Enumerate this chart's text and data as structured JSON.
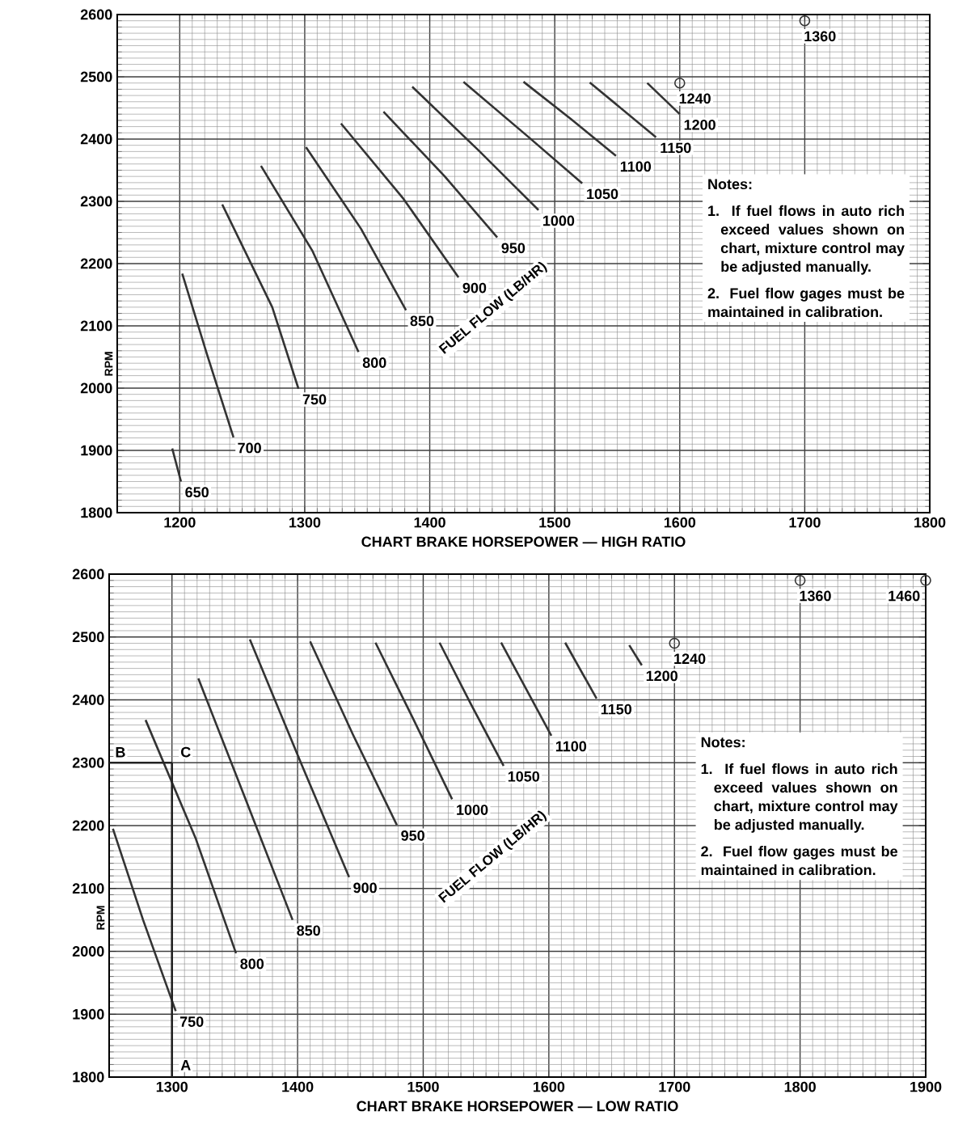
{
  "chart_data": [
    {
      "type": "line",
      "xlabel": "CHART BRAKE HORSEPOWER — HIGH RATIO",
      "ylabel": "RPM",
      "xlim": [
        1150,
        1800
      ],
      "ylim": [
        1800,
        2600
      ],
      "xticks": [
        1200,
        1300,
        1400,
        1500,
        1600,
        1700,
        1800
      ],
      "yticks": [
        1800,
        1900,
        2000,
        2100,
        2200,
        2300,
        2400,
        2500,
        2600
      ],
      "grid": true,
      "series": [
        {
          "name": "650",
          "color": "#333333",
          "x": [
            1194,
            1201
          ],
          "values": [
            1903,
            1850
          ]
        },
        {
          "name": "700",
          "color": "#333333",
          "x": [
            1202,
            1222,
            1243
          ],
          "values": [
            2184,
            2053,
            1921
          ]
        },
        {
          "name": "750",
          "color": "#333333",
          "x": [
            1234,
            1274,
            1295
          ],
          "values": [
            2295,
            2130,
            1999
          ]
        },
        {
          "name": "800",
          "color": "#333333",
          "x": [
            1265,
            1306,
            1343
          ],
          "values": [
            2357,
            2221,
            2058
          ]
        },
        {
          "name": "850",
          "color": "#333333",
          "x": [
            1301,
            1345,
            1381
          ],
          "values": [
            2387,
            2256,
            2125
          ]
        },
        {
          "name": "900",
          "color": "#333333",
          "x": [
            1329,
            1379,
            1423
          ],
          "values": [
            2425,
            2304,
            2178
          ]
        },
        {
          "name": "950",
          "color": "#333333",
          "x": [
            1363,
            1412,
            1454
          ],
          "values": [
            2444,
            2340,
            2242
          ]
        },
        {
          "name": "1000",
          "color": "#333333",
          "x": [
            1386,
            1439,
            1487
          ],
          "values": [
            2484,
            2382,
            2286
          ]
        },
        {
          "name": "1050",
          "color": "#333333",
          "x": [
            1427,
            1478,
            1522
          ],
          "values": [
            2492,
            2405,
            2329
          ]
        },
        {
          "name": "1100",
          "color": "#333333",
          "x": [
            1475,
            1513,
            1549
          ],
          "values": [
            2492,
            2432,
            2373
          ]
        },
        {
          "name": "1150",
          "color": "#333333",
          "x": [
            1528,
            1581
          ],
          "values": [
            2491,
            2403
          ]
        },
        {
          "name": "1200",
          "color": "#333333",
          "x": [
            1574,
            1600
          ],
          "values": [
            2490,
            2440
          ]
        },
        {
          "name": "1240",
          "type": "scatter",
          "marker": "circle",
          "color": "#333333",
          "x": [
            1600
          ],
          "values": [
            2490
          ]
        },
        {
          "name": "1360",
          "type": "scatter",
          "marker": "circle",
          "color": "#333333",
          "x": [
            1700
          ],
          "values": [
            2590
          ]
        }
      ],
      "annotations": [
        "FUEL FLOW (LB/HR)",
        "Notes:",
        "1. If fuel flows in auto rich exceed values shown on chart, mixture control may be adjusted manually.",
        "2. Fuel flow gages must be maintained in calibration."
      ]
    },
    {
      "type": "line",
      "xlabel": "CHART BRAKE HORSEPOWER — LOW RATIO",
      "ylabel": "RPM",
      "xlim": [
        1250,
        1900
      ],
      "ylim": [
        1800,
        2600
      ],
      "xticks": [
        1300,
        1400,
        1500,
        1600,
        1700,
        1800,
        1900
      ],
      "yticks": [
        1800,
        1900,
        2000,
        2100,
        2200,
        2300,
        2400,
        2500,
        2600
      ],
      "grid": true,
      "series": [
        {
          "name": "750",
          "color": "#333333",
          "x": [
            1253,
            1277,
            1303
          ],
          "values": [
            2195,
            2050,
            1905
          ]
        },
        {
          "name": "800",
          "color": "#333333",
          "x": [
            1279,
            1319,
            1351
          ],
          "values": [
            2368,
            2179,
            1997
          ]
        },
        {
          "name": "850",
          "color": "#333333",
          "x": [
            1321,
            1358,
            1396
          ],
          "values": [
            2434,
            2245,
            2050
          ]
        },
        {
          "name": "900",
          "color": "#333333",
          "x": [
            1362,
            1403,
            1441
          ],
          "values": [
            2496,
            2298,
            2118
          ]
        },
        {
          "name": "950",
          "color": "#333333",
          "x": [
            1410,
            1444,
            1479
          ],
          "values": [
            2493,
            2345,
            2201
          ]
        },
        {
          "name": "1000",
          "color": "#333333",
          "x": [
            1462,
            1492,
            1523
          ],
          "values": [
            2491,
            2370,
            2242
          ]
        },
        {
          "name": "1050",
          "color": "#333333",
          "x": [
            1513,
            1538,
            1564
          ],
          "values": [
            2491,
            2393,
            2295
          ]
        },
        {
          "name": "1100",
          "color": "#333333",
          "x": [
            1562,
            1602
          ],
          "values": [
            2491,
            2343
          ]
        },
        {
          "name": "1150",
          "color": "#333333",
          "x": [
            1613,
            1638
          ],
          "values": [
            2491,
            2402
          ]
        },
        {
          "name": "1200",
          "color": "#333333",
          "x": [
            1664,
            1674
          ],
          "values": [
            2487,
            2455
          ]
        },
        {
          "name": "1240",
          "type": "scatter",
          "marker": "circle",
          "color": "#333333",
          "x": [
            1700
          ],
          "values": [
            2490
          ]
        },
        {
          "name": "1360",
          "type": "scatter",
          "marker": "circle",
          "color": "#333333",
          "x": [
            1800
          ],
          "values": [
            2590
          ]
        },
        {
          "name": "1460",
          "type": "scatter",
          "marker": "circle",
          "color": "#333333",
          "x": [
            1900
          ],
          "values": [
            2590
          ]
        },
        {
          "color": "#222222",
          "x": [
            1300,
            1300
          ],
          "values": [
            1800,
            2300
          ]
        },
        {
          "color": "#222222",
          "x": [
            1250,
            1300
          ],
          "values": [
            2300,
            2300
          ]
        }
      ],
      "annotations": [
        "FUEL FLOW (LB/HR)",
        "Notes:",
        "1. If fuel flows in auto rich exceed values shown on chart, mixture control may be adjusted manually.",
        "2. Fuel flow gages must be maintained in calibration.",
        "A",
        "B",
        "C"
      ]
    }
  ]
}
